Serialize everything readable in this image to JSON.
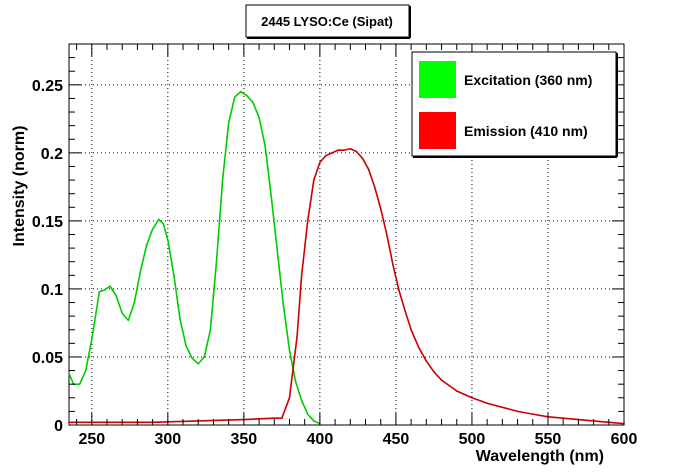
{
  "chart_data": {
    "type": "line",
    "title": "2445 LYSO:Ce (Sipat)",
    "xlabel": "Wavelength (nm)",
    "ylabel": "Intensity (norm)",
    "xlim": [
      235,
      600
    ],
    "ylim": [
      0,
      0.28
    ],
    "x_ticks": [
      250,
      300,
      350,
      400,
      450,
      500,
      550,
      600
    ],
    "x_tick_labels": [
      "250",
      "300",
      "350",
      "400",
      "450",
      "500",
      "550",
      "600"
    ],
    "y_ticks": [
      0,
      0.05,
      0.1,
      0.15,
      0.2,
      0.25
    ],
    "y_tick_labels": [
      "0",
      "0.05",
      "0.1",
      "0.15",
      "0.2",
      "0.25"
    ],
    "grid": true,
    "legend_position": "top-right",
    "series": [
      {
        "name": "Excitation (360 nm)",
        "color": "#00cc00",
        "x": [
          235,
          238,
          242,
          246,
          250,
          255,
          258,
          262,
          266,
          270,
          274,
          278,
          282,
          286,
          290,
          294,
          297,
          300,
          304,
          308,
          312,
          316,
          320,
          324,
          328,
          332,
          336,
          340,
          344,
          348,
          352,
          356,
          360,
          364,
          368,
          372,
          376,
          380,
          384,
          388,
          392,
          396,
          400
        ],
        "y": [
          0.038,
          0.03,
          0.03,
          0.04,
          0.063,
          0.098,
          0.099,
          0.102,
          0.095,
          0.082,
          0.077,
          0.09,
          0.113,
          0.132,
          0.144,
          0.151,
          0.148,
          0.136,
          0.11,
          0.078,
          0.058,
          0.049,
          0.045,
          0.05,
          0.07,
          0.12,
          0.18,
          0.222,
          0.241,
          0.245,
          0.242,
          0.237,
          0.226,
          0.205,
          0.168,
          0.128,
          0.088,
          0.055,
          0.032,
          0.018,
          0.008,
          0.003,
          0.001
        ]
      },
      {
        "name": "Emission (410 nm)",
        "color": "#cc0000",
        "x": [
          235,
          260,
          290,
          320,
          350,
          370,
          375,
          380,
          385,
          388,
          392,
          396,
          400,
          404,
          408,
          412,
          416,
          420,
          424,
          428,
          432,
          436,
          440,
          444,
          448,
          452,
          456,
          460,
          465,
          470,
          475,
          480,
          490,
          500,
          510,
          520,
          530,
          540,
          550,
          560,
          570,
          580,
          590,
          600
        ],
        "y": [
          0.002,
          0.002,
          0.002,
          0.003,
          0.004,
          0.005,
          0.005,
          0.02,
          0.065,
          0.11,
          0.15,
          0.18,
          0.193,
          0.198,
          0.2,
          0.202,
          0.202,
          0.203,
          0.201,
          0.196,
          0.188,
          0.175,
          0.159,
          0.14,
          0.118,
          0.099,
          0.084,
          0.07,
          0.057,
          0.047,
          0.039,
          0.033,
          0.025,
          0.02,
          0.016,
          0.013,
          0.01,
          0.008,
          0.006,
          0.005,
          0.004,
          0.003,
          0.002,
          0.001
        ]
      }
    ]
  }
}
